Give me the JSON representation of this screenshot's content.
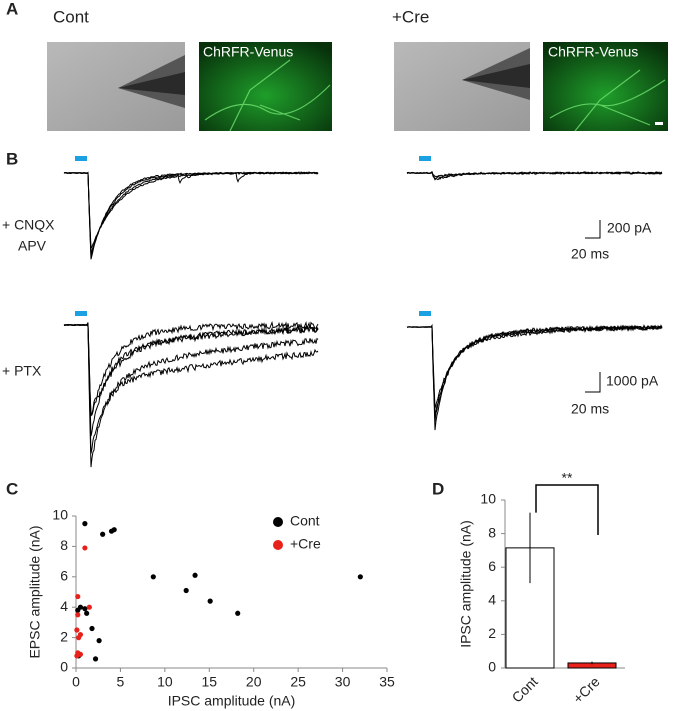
{
  "panel_a": {
    "label": "A",
    "conditions": [
      "Cont",
      "+Cre"
    ],
    "image_caption": "ChRFR-Venus"
  },
  "panel_b": {
    "label": "B",
    "cnqx": "+ CNQX",
    "apv": "APV",
    "ptx": "+ PTX",
    "scale_bars": [
      {
        "amplitude": "200 pA",
        "time": "20 ms"
      },
      {
        "amplitude": "1000 pA",
        "time": "20 ms"
      }
    ]
  },
  "chart_data": [
    {
      "type": "scatter",
      "panel": "C",
      "x_label": "IPSC amplitude (nA)",
      "y_label": "EPSC amplitude (nA)",
      "xlim": [
        0,
        35
      ],
      "xticks": [
        0,
        5,
        10,
        15,
        20,
        25,
        30,
        35
      ],
      "ylim": [
        0,
        10
      ],
      "yticks": [
        0,
        2,
        4,
        6,
        8,
        10
      ],
      "legend": "upper right",
      "series": [
        {
          "name": "Cont",
          "color": "#000000",
          "x": [
            1.0,
            4.0,
            4.3,
            3.0,
            8.7,
            13.4,
            32.0,
            12.4,
            15.1,
            18.2,
            0.5,
            1.0,
            1.2,
            0.2,
            1.8,
            2.6,
            2.2,
            0.3
          ],
          "values": [
            9.5,
            9.0,
            9.1,
            8.8,
            6.0,
            6.1,
            6.0,
            5.1,
            4.4,
            3.6,
            4.0,
            3.9,
            3.6,
            3.8,
            2.6,
            1.8,
            0.6,
            0.8
          ]
        },
        {
          "name": "+Cre",
          "color": "#e8221b",
          "x": [
            1.0,
            0.2,
            1.5,
            0.2,
            0.1,
            0.5,
            0.3,
            0.2,
            0.5,
            0.1,
            0.3
          ],
          "values": [
            7.9,
            4.7,
            4.0,
            3.5,
            2.5,
            2.2,
            2.0,
            1.0,
            0.9,
            0.8,
            0.9
          ]
        }
      ]
    },
    {
      "type": "bar",
      "panel": "D",
      "y_label": "IPSC amplitude (nA)",
      "categories": [
        "Cont",
        "+Cre"
      ],
      "values": [
        7.15,
        0.3
      ],
      "errors": [
        2.1,
        0.08
      ],
      "colors": [
        "#ffffff",
        "#e8221b"
      ],
      "edgecolor": "#000000",
      "ylim": [
        0,
        10
      ],
      "yticks": [
        0,
        2,
        4,
        6,
        8,
        10
      ],
      "annotation": "**"
    }
  ]
}
